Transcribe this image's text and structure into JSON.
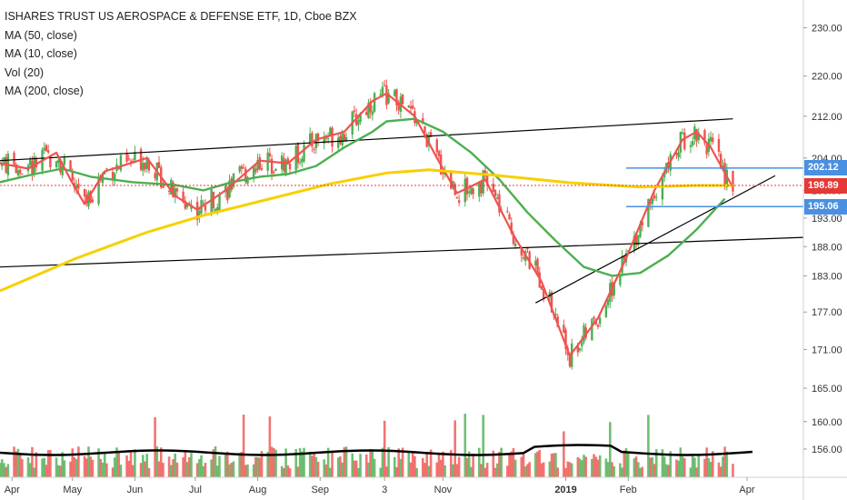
{
  "legend": {
    "title": "ISHARES TRUST US AEROSPACE & DEFENSE ETF, 1D, Cboe BZX",
    "study1": "MA (50, close)",
    "study2": "MA (10, close)",
    "study3": "Vol (20)",
    "study4": "MA (200, close)"
  },
  "price_labels": {
    "upper": "202.12",
    "last": "198.89",
    "lower": "195.06"
  },
  "colors": {
    "ma50": "#4caf50",
    "ma10": "#ef5350",
    "ma200": "#f7d000",
    "vol_ma": "#000000",
    "up": "#4caf50",
    "down": "#ef5350",
    "trendline": "#000000",
    "level_line": "#4a90e2",
    "last_price": "#e53935"
  },
  "chart_data": {
    "type": "line",
    "title": "ISHARES TRUST US AEROSPACE & DEFENSE ETF, 1D, Cboe BZX",
    "x_tick_labels": [
      "Apr",
      "May",
      "Jun",
      "Jul",
      "Aug",
      "Sep",
      "3",
      "Nov",
      "2019",
      "Feb",
      "Apr"
    ],
    "y_tick_labels": [
      "230.00",
      "220.00",
      "212.00",
      "204.00",
      "198.00",
      "193.00",
      "188.00",
      "183.00",
      "177.00",
      "171.00",
      "165.00",
      "160.00",
      "156.00"
    ],
    "y_scale": "log",
    "ylim": [
      152,
      234
    ],
    "date_range": [
      "2018-03-26",
      "2019-04-29"
    ],
    "last_price": 198.89,
    "horizontal_levels": [
      202.12,
      195.06
    ],
    "series": [
      {
        "name": "MA (50, close)",
        "points": [
          [
            "2018-03-26",
            199.5
          ],
          [
            "2018-04-12",
            201
          ],
          [
            "2018-04-26",
            202
          ],
          [
            "2018-05-10",
            200.5
          ],
          [
            "2018-05-31",
            199.5
          ],
          [
            "2018-06-21",
            199
          ],
          [
            "2018-07-05",
            198
          ],
          [
            "2018-07-19",
            199.5
          ],
          [
            "2018-08-02",
            200.5
          ],
          [
            "2018-08-16",
            201
          ],
          [
            "2018-08-30",
            202.5
          ],
          [
            "2018-09-13",
            206
          ],
          [
            "2018-09-27",
            209
          ],
          [
            "2018-10-04",
            211
          ],
          [
            "2018-10-18",
            211.5
          ],
          [
            "2018-11-01",
            209
          ],
          [
            "2018-11-15",
            205
          ],
          [
            "2018-11-29",
            200
          ],
          [
            "2018-12-13",
            194
          ],
          [
            "2018-12-27",
            189
          ],
          [
            "2019-01-10",
            184.5
          ],
          [
            "2019-01-24",
            183
          ],
          [
            "2019-02-07",
            183.5
          ],
          [
            "2019-02-21",
            186.5
          ],
          [
            "2019-03-07",
            191
          ],
          [
            "2019-03-21",
            196.5
          ]
        ]
      },
      {
        "name": "MA (10, close)",
        "points": [
          [
            "2018-03-26",
            203
          ],
          [
            "2018-04-09",
            202
          ],
          [
            "2018-04-23",
            205
          ],
          [
            "2018-04-30",
            200
          ],
          [
            "2018-05-07",
            195.5
          ],
          [
            "2018-05-17",
            201.5
          ],
          [
            "2018-06-07",
            204
          ],
          [
            "2018-06-21",
            197
          ],
          [
            "2018-07-02",
            194.5
          ],
          [
            "2018-07-16",
            198
          ],
          [
            "2018-08-02",
            203.5
          ],
          [
            "2018-08-16",
            203
          ],
          [
            "2018-08-30",
            207.5
          ],
          [
            "2018-09-13",
            209
          ],
          [
            "2018-09-27",
            215
          ],
          [
            "2018-10-04",
            216.5
          ],
          [
            "2018-10-18",
            212
          ],
          [
            "2018-10-29",
            204
          ],
          [
            "2018-11-08",
            197.5
          ],
          [
            "2018-11-22",
            200
          ],
          [
            "2018-12-06",
            190
          ],
          [
            "2018-12-20",
            182
          ],
          [
            "2019-01-03",
            170
          ],
          [
            "2019-01-17",
            176
          ],
          [
            "2019-01-31",
            186
          ],
          [
            "2019-02-14",
            198
          ],
          [
            "2019-02-28",
            207.5
          ],
          [
            "2019-03-07",
            209
          ],
          [
            "2019-03-14",
            206
          ],
          [
            "2019-03-25",
            198.5
          ]
        ]
      },
      {
        "name": "MA (200, close)",
        "points": [
          [
            "2018-03-26",
            180.5
          ],
          [
            "2018-05-03",
            186
          ],
          [
            "2018-06-07",
            190.5
          ],
          [
            "2018-07-05",
            193.5
          ],
          [
            "2018-08-02",
            196
          ],
          [
            "2018-09-06",
            199.2
          ],
          [
            "2018-10-04",
            201.2
          ],
          [
            "2018-10-25",
            201.8
          ],
          [
            "2018-11-29",
            200.7
          ],
          [
            "2019-01-03",
            199.4
          ],
          [
            "2019-02-07",
            198.6
          ],
          [
            "2019-03-07",
            198.9
          ],
          [
            "2019-03-25",
            198.9
          ]
        ]
      }
    ],
    "trendlines": [
      {
        "points": [
          [
            "2018-03-26",
            203.5
          ],
          [
            "2019-03-25",
            211.5
          ]
        ]
      },
      {
        "points": [
          [
            "2018-03-26",
            184.5
          ],
          [
            "2019-04-29",
            189.6
          ]
        ]
      },
      {
        "points": [
          [
            "2018-12-17",
            178.5
          ],
          [
            "2019-04-15",
            200.7
          ]
        ]
      }
    ],
    "candles_note": "Daily OHLC candles, green up / red down; extreme low near 161 around 2019-01-03, high near 220 around 2018-09-20",
    "volume": {
      "name": "Vol (20)",
      "ma_visible": true
    },
    "grid": false,
    "legend_position": "top-left"
  }
}
